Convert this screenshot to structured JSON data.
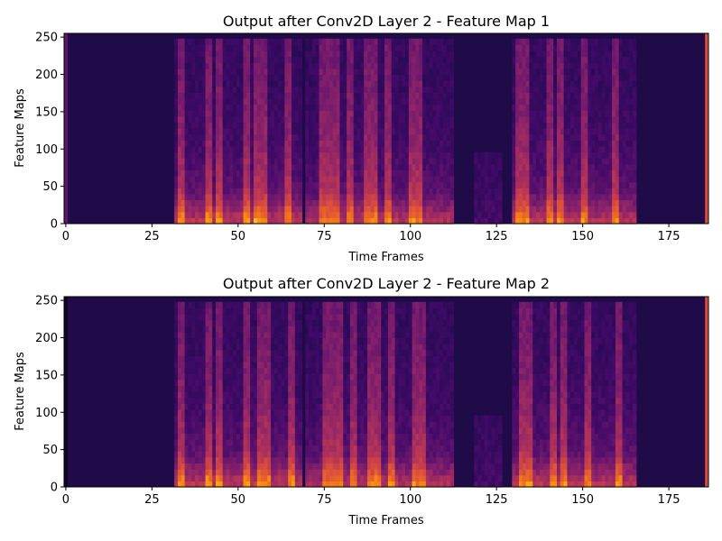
{
  "chart_data": [
    {
      "type": "heatmap",
      "title": "Output after Conv2D Layer 2 - Feature Map 1",
      "xlabel": "Time Frames",
      "ylabel": "Feature Maps",
      "xlim": [
        -0.5,
        186.5
      ],
      "ylim": [
        0,
        255
      ],
      "xticks": [
        0,
        25,
        50,
        75,
        100,
        125,
        150,
        175
      ],
      "yticks": [
        0,
        50,
        100,
        150,
        200,
        250
      ],
      "colormap": "inferno",
      "grid": false,
      "segments": [
        {
          "from": 32,
          "to": 68,
          "intensity": 0.6
        },
        {
          "from": 70,
          "to": 112,
          "intensity": 0.55
        },
        {
          "from": 119,
          "to": 126,
          "intensity": 0.15
        },
        {
          "from": 130,
          "to": 165,
          "intensity": 0.6
        }
      ],
      "bright_columns": [
        33,
        41,
        44,
        52,
        55,
        57,
        64,
        74,
        76,
        78,
        82,
        87,
        89,
        93,
        100,
        102,
        131,
        133,
        140,
        143,
        150,
        159
      ],
      "edge_columns": [
        {
          "x": 0,
          "intensity": 0.35
        },
        {
          "x": 186,
          "intensity": 0.72
        }
      ]
    },
    {
      "type": "heatmap",
      "title": "Output after Conv2D Layer 2 - Feature Map 2",
      "xlabel": "Time Frames",
      "ylabel": "Feature Maps",
      "xlim": [
        -0.5,
        186.5
      ],
      "ylim": [
        0,
        255
      ],
      "xticks": [
        0,
        25,
        50,
        75,
        100,
        125,
        150,
        175
      ],
      "yticks": [
        0,
        50,
        100,
        150,
        200,
        250
      ],
      "colormap": "inferno",
      "grid": false,
      "segments": [
        {
          "from": 32,
          "to": 68,
          "intensity": 0.6
        },
        {
          "from": 70,
          "to": 112,
          "intensity": 0.55
        },
        {
          "from": 119,
          "to": 126,
          "intensity": 0.15
        },
        {
          "from": 130,
          "to": 165,
          "intensity": 0.6
        }
      ],
      "bright_columns": [
        33,
        41,
        44,
        52,
        56,
        58,
        65,
        75,
        77,
        79,
        83,
        88,
        90,
        94,
        101,
        103,
        132,
        134,
        141,
        144,
        151,
        160
      ],
      "edge_columns": [
        {
          "x": 0,
          "intensity": 0.05
        },
        {
          "x": 186,
          "intensity": 0.72
        }
      ]
    }
  ]
}
